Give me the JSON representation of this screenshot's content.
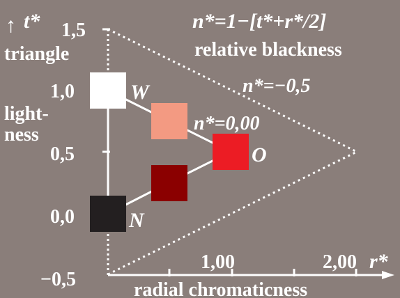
{
  "formula_title": "n*=1−[t*+r*/2]",
  "subtitle": "relative blackness",
  "t_axis": {
    "arrow": "↑",
    "symbol": "t*"
  },
  "triangle_label": "triangle",
  "lightness_label_1": "light-",
  "lightness_label_2": "ness",
  "y_ticks": [
    "1,5",
    "1,0",
    "0,5",
    "0,0",
    "−0,5"
  ],
  "x_ticks": [
    "1,00",
    "2,00"
  ],
  "r_symbol": "r*",
  "x_label": "radial chromaticness",
  "n_neg_label": "n*=−0,5",
  "n_zero_label": "n*=0,00",
  "points": {
    "W": {
      "label": "W",
      "color": "#ffffff"
    },
    "N": {
      "label": "N",
      "color": "#231f20"
    },
    "O": {
      "label": "O",
      "color": "#ec1c24"
    }
  },
  "squares": {
    "light_red": "#f39a82",
    "dark_red": "#8b0000"
  }
}
